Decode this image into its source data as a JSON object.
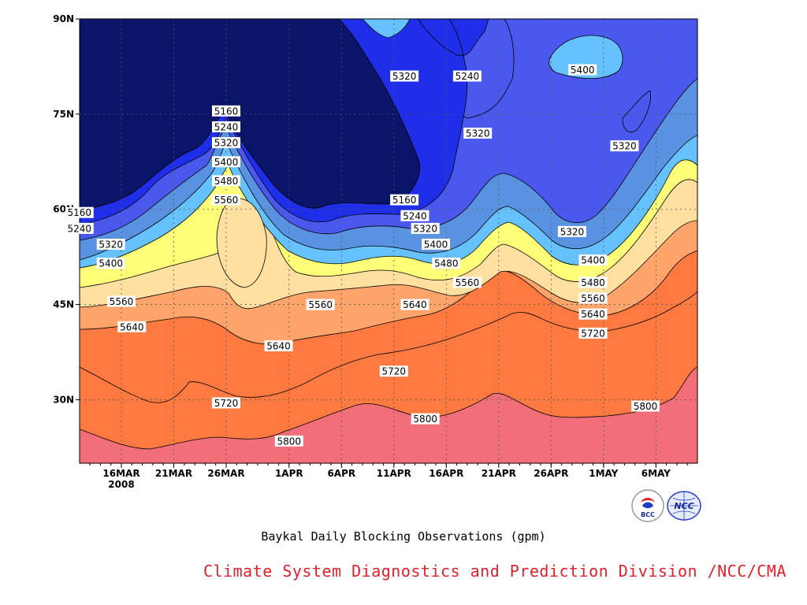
{
  "chart_data": {
    "type": "heatmap",
    "title": "Baykal Daily Blocking Observations (gpm)",
    "x_ticks": [
      "16MAR",
      "21MAR",
      "26MAR",
      "1APR",
      "6APR",
      "11APR",
      "16APR",
      "21APR",
      "26APR",
      "1MAY",
      "6MAY"
    ],
    "x_year_label": "2008",
    "y_ticks": [
      "30N",
      "45N",
      "60N",
      "75N",
      "90N"
    ],
    "y_values": [
      30,
      45,
      60,
      75,
      90
    ],
    "ylim": [
      20,
      90
    ],
    "grid": true,
    "contour_levels": [
      5160,
      5240,
      5320,
      5400,
      5480,
      5560,
      5640,
      5720,
      5800
    ],
    "level_colors": {
      "below_5160": "#0a1468",
      "5160_5240": "#1f2ee8",
      "5240_5320": "#4a58ee",
      "5320_5400": "#5a92e2",
      "5400_5480": "#66c2ff",
      "5480_5560": "#ffff78",
      "5560_5640": "#ffe0a0",
      "5640_5720": "#ffa46a",
      "5720_5800": "#ff7a40",
      "above_5800": "#f26e78"
    },
    "contour_labels": [
      {
        "text": "5160",
        "date": "26MAR",
        "lat": 75.5
      },
      {
        "text": "5240",
        "date": "26MAR",
        "lat": 73
      },
      {
        "text": "5320",
        "date": "26MAR",
        "lat": 70.5
      },
      {
        "text": "5400",
        "date": "26MAR",
        "lat": 67.5
      },
      {
        "text": "5480",
        "date": "26MAR",
        "lat": 64.5
      },
      {
        "text": "5560",
        "date": "26MAR",
        "lat": 61.5
      },
      {
        "text": "5160",
        "date": "12MAR",
        "lat": 59.5
      },
      {
        "text": "5240",
        "date": "12MAR",
        "lat": 57
      },
      {
        "text": "5320",
        "date": "15MAR",
        "lat": 54.5
      },
      {
        "text": "5400",
        "date": "15MAR",
        "lat": 51.5
      },
      {
        "text": "5560",
        "date": "16MAR",
        "lat": 45.5
      },
      {
        "text": "5640",
        "date": "17MAR",
        "lat": 41.5
      },
      {
        "text": "5320",
        "date": "12APR",
        "lat": 81
      },
      {
        "text": "5240",
        "date": "18APR",
        "lat": 81
      },
      {
        "text": "5400",
        "date": "29APR",
        "lat": 82
      },
      {
        "text": "5320",
        "date": "19APR",
        "lat": 72
      },
      {
        "text": "5320",
        "date": "3MAY",
        "lat": 70
      },
      {
        "text": "5160",
        "date": "12APR",
        "lat": 61.5
      },
      {
        "text": "5240",
        "date": "13APR",
        "lat": 59
      },
      {
        "text": "5320",
        "date": "14APR",
        "lat": 57
      },
      {
        "text": "5400",
        "date": "15APR",
        "lat": 54.5
      },
      {
        "text": "5480",
        "date": "16APR",
        "lat": 51.5
      },
      {
        "text": "5560",
        "date": "18APR",
        "lat": 48.5
      },
      {
        "text": "5640",
        "date": "13APR",
        "lat": 45
      },
      {
        "text": "5320",
        "date": "28APR",
        "lat": 56.5
      },
      {
        "text": "5400",
        "date": "30APR",
        "lat": 52
      },
      {
        "text": "5480",
        "date": "30APR",
        "lat": 48.5
      },
      {
        "text": "5560",
        "date": "30APR",
        "lat": 46
      },
      {
        "text": "5640",
        "date": "30APR",
        "lat": 43.5
      },
      {
        "text": "5720",
        "date": "30APR",
        "lat": 40.5
      },
      {
        "text": "5560",
        "date": "4APR",
        "lat": 45
      },
      {
        "text": "5640",
        "date": "31MAR",
        "lat": 38.5
      },
      {
        "text": "5720",
        "date": "11APR",
        "lat": 34.5
      },
      {
        "text": "5720",
        "date": "26MAR",
        "lat": 29.5
      },
      {
        "text": "5800",
        "date": "1APR",
        "lat": 23.5
      },
      {
        "text": "5800",
        "date": "14APR",
        "lat": 27
      },
      {
        "text": "5800",
        "date": "5MAY",
        "lat": 29
      }
    ]
  },
  "title": "Baykal Daily Blocking Observations (gpm)",
  "credit": "Climate System Diagnostics and Prediction Division /NCC/CMA",
  "logos": [
    {
      "name": "bcc-logo",
      "text": "BCC"
    },
    {
      "name": "ncc-logo",
      "text": "NCC"
    }
  ]
}
